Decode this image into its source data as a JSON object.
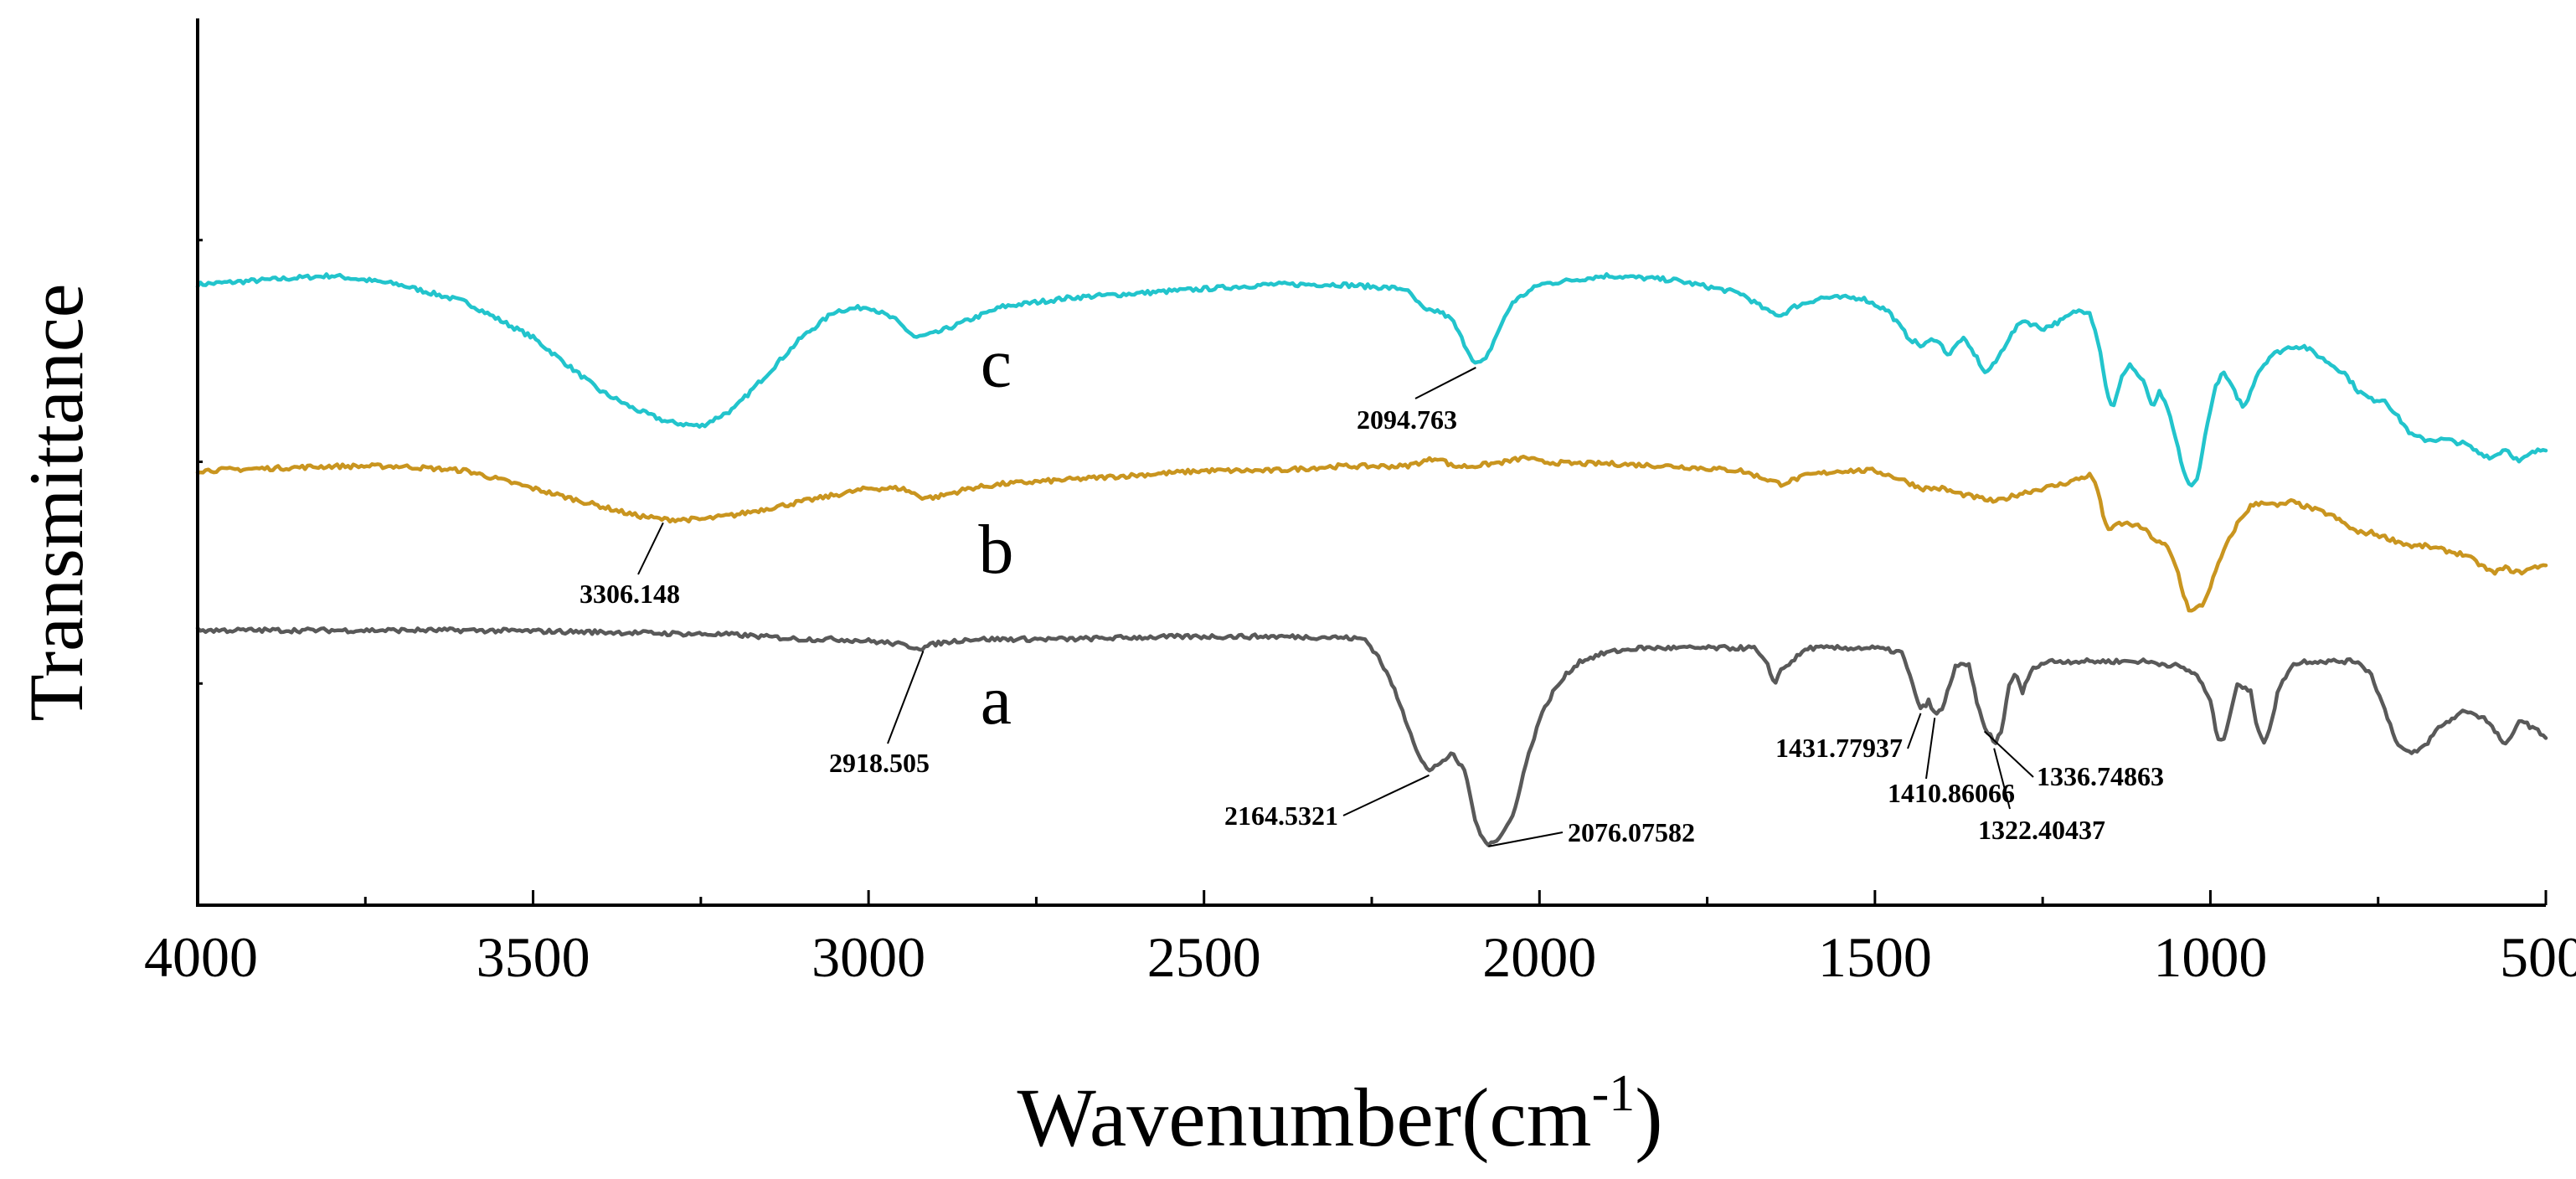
{
  "chart_data": {
    "type": "line",
    "title": "",
    "xlabel": "Wavenumber(cm",
    "xlabel_superscript": "-1",
    "xlabel_close": ")",
    "ylabel": "Transmittance",
    "xlim": [
      4000,
      500
    ],
    "ylim": [
      0,
      100
    ],
    "x_ticks": [
      4000,
      3500,
      3000,
      2500,
      2000,
      1500,
      1000,
      500
    ],
    "x_tick_labels": [
      "4000",
      "3500",
      "3000",
      "2500",
      "2000",
      "1500",
      "1000",
      "500"
    ],
    "grid": false,
    "legend": "none",
    "series": [
      {
        "name": "c",
        "color": "#22c4cc",
        "points": [
          [
            4000,
            70
          ],
          [
            3800,
            71
          ],
          [
            3700,
            70
          ],
          [
            3600,
            68
          ],
          [
            3500,
            64
          ],
          [
            3400,
            58
          ],
          [
            3350,
            56
          ],
          [
            3300,
            54.5
          ],
          [
            3250,
            54
          ],
          [
            3200,
            56
          ],
          [
            3150,
            60
          ],
          [
            3100,
            64
          ],
          [
            3050,
            67
          ],
          [
            3000,
            67.5
          ],
          [
            2960,
            66
          ],
          [
            2930,
            64
          ],
          [
            2900,
            64.5
          ],
          [
            2850,
            66
          ],
          [
            2800,
            67.5
          ],
          [
            2700,
            68.5
          ],
          [
            2600,
            69
          ],
          [
            2500,
            69.5
          ],
          [
            2400,
            70
          ],
          [
            2300,
            70
          ],
          [
            2200,
            69.5
          ],
          [
            2170,
            67
          ],
          [
            2150,
            67
          ],
          [
            2130,
            66
          ],
          [
            2110,
            63
          ],
          [
            2095,
            61
          ],
          [
            2080,
            61.5
          ],
          [
            2060,
            65
          ],
          [
            2040,
            68
          ],
          [
            2000,
            70
          ],
          [
            1900,
            71
          ],
          [
            1800,
            70.5
          ],
          [
            1700,
            69
          ],
          [
            1660,
            67
          ],
          [
            1640,
            66.5
          ],
          [
            1620,
            67.5
          ],
          [
            1580,
            68.5
          ],
          [
            1520,
            68.5
          ],
          [
            1480,
            67
          ],
          [
            1450,
            64
          ],
          [
            1430,
            63
          ],
          [
            1410,
            64
          ],
          [
            1390,
            62
          ],
          [
            1370,
            64
          ],
          [
            1350,
            62
          ],
          [
            1336,
            60
          ],
          [
            1322,
            61
          ],
          [
            1300,
            64
          ],
          [
            1280,
            66
          ],
          [
            1250,
            65
          ],
          [
            1220,
            66
          ],
          [
            1200,
            67
          ],
          [
            1180,
            67
          ],
          [
            1165,
            63
          ],
          [
            1155,
            58
          ],
          [
            1145,
            56
          ],
          [
            1130,
            60
          ],
          [
            1120,
            61
          ],
          [
            1100,
            59
          ],
          [
            1085,
            56
          ],
          [
            1075,
            58
          ],
          [
            1060,
            55
          ],
          [
            1050,
            52
          ],
          [
            1040,
            49
          ],
          [
            1030,
            47
          ],
          [
            1020,
            48
          ],
          [
            1010,
            52
          ],
          [
            1000,
            56
          ],
          [
            990,
            59
          ],
          [
            980,
            60
          ],
          [
            965,
            58
          ],
          [
            950,
            56
          ],
          [
            930,
            60
          ],
          [
            910,
            62
          ],
          [
            880,
            63
          ],
          [
            860,
            63
          ],
          [
            840,
            62
          ],
          [
            820,
            61
          ],
          [
            800,
            60
          ],
          [
            780,
            58
          ],
          [
            760,
            57
          ],
          [
            740,
            57
          ],
          [
            720,
            55
          ],
          [
            700,
            53
          ],
          [
            680,
            52.5
          ],
          [
            650,
            52.5
          ],
          [
            620,
            52
          ],
          [
            600,
            51
          ],
          [
            580,
            50.5
          ],
          [
            560,
            51.5
          ],
          [
            540,
            50
          ],
          [
            520,
            51
          ],
          [
            500,
            51.5
          ]
        ]
      },
      {
        "name": "b",
        "color": "#c9951f",
        "points": [
          [
            4000,
            49
          ],
          [
            3800,
            49.5
          ],
          [
            3700,
            49.5
          ],
          [
            3600,
            49
          ],
          [
            3500,
            47
          ],
          [
            3400,
            45
          ],
          [
            3350,
            44
          ],
          [
            3306,
            43.5
          ],
          [
            3250,
            43.5
          ],
          [
            3200,
            44
          ],
          [
            3100,
            45.5
          ],
          [
            3000,
            47
          ],
          [
            2950,
            47
          ],
          [
            2920,
            46
          ],
          [
            2900,
            46
          ],
          [
            2850,
            47
          ],
          [
            2800,
            47.5
          ],
          [
            2700,
            48
          ],
          [
            2600,
            48.5
          ],
          [
            2500,
            49
          ],
          [
            2400,
            49
          ],
          [
            2300,
            49.5
          ],
          [
            2200,
            49.5
          ],
          [
            2150,
            50.5
          ],
          [
            2130,
            49.5
          ],
          [
            2100,
            49.5
          ],
          [
            2050,
            50
          ],
          [
            2020,
            50.5
          ],
          [
            2000,
            50
          ],
          [
            1950,
            49.8
          ],
          [
            1900,
            49.8
          ],
          [
            1800,
            49.5
          ],
          [
            1700,
            49
          ],
          [
            1660,
            48
          ],
          [
            1640,
            47.5
          ],
          [
            1600,
            48.5
          ],
          [
            1550,
            49
          ],
          [
            1500,
            49
          ],
          [
            1460,
            48
          ],
          [
            1430,
            47
          ],
          [
            1400,
            47
          ],
          [
            1380,
            46.5
          ],
          [
            1350,
            46
          ],
          [
            1320,
            45.5
          ],
          [
            1300,
            46
          ],
          [
            1280,
            46.5
          ],
          [
            1250,
            47
          ],
          [
            1220,
            47.5
          ],
          [
            1200,
            48
          ],
          [
            1180,
            48.5
          ],
          [
            1170,
            47.5
          ],
          [
            1160,
            44
          ],
          [
            1150,
            42
          ],
          [
            1140,
            43
          ],
          [
            1120,
            43
          ],
          [
            1100,
            42.5
          ],
          [
            1080,
            41
          ],
          [
            1065,
            40.5
          ],
          [
            1050,
            38
          ],
          [
            1040,
            35
          ],
          [
            1030,
            33
          ],
          [
            1020,
            33.5
          ],
          [
            1010,
            34
          ],
          [
            1000,
            36
          ],
          [
            980,
            40
          ],
          [
            960,
            43
          ],
          [
            940,
            45
          ],
          [
            920,
            45.5
          ],
          [
            900,
            45
          ],
          [
            880,
            45.5
          ],
          [
            860,
            45
          ],
          [
            840,
            44.5
          ],
          [
            820,
            44
          ],
          [
            800,
            43
          ],
          [
            780,
            42
          ],
          [
            760,
            42
          ],
          [
            740,
            41.5
          ],
          [
            720,
            41
          ],
          [
            700,
            40.5
          ],
          [
            680,
            40.5
          ],
          [
            650,
            40
          ],
          [
            620,
            39.5
          ],
          [
            600,
            38.5
          ],
          [
            580,
            37.5
          ],
          [
            560,
            38
          ],
          [
            540,
            37.5
          ],
          [
            520,
            38
          ],
          [
            500,
            38.5
          ]
        ]
      },
      {
        "name": "a",
        "color": "#595959",
        "points": [
          [
            4000,
            31
          ],
          [
            3800,
            31
          ],
          [
            3600,
            31
          ],
          [
            3400,
            30.8
          ],
          [
            3200,
            30.5
          ],
          [
            3100,
            30
          ],
          [
            3050,
            30
          ],
          [
            3000,
            29.8
          ],
          [
            2960,
            29.5
          ],
          [
            2940,
            29.2
          ],
          [
            2920,
            29
          ],
          [
            2900,
            29.5
          ],
          [
            2850,
            30
          ],
          [
            2800,
            30
          ],
          [
            2700,
            30
          ],
          [
            2600,
            30.2
          ],
          [
            2500,
            30.3
          ],
          [
            2400,
            30.3
          ],
          [
            2300,
            30.2
          ],
          [
            2260,
            30
          ],
          [
            2240,
            28
          ],
          [
            2220,
            25
          ],
          [
            2200,
            21
          ],
          [
            2180,
            17
          ],
          [
            2165,
            15
          ],
          [
            2150,
            16
          ],
          [
            2130,
            17
          ],
          [
            2110,
            15
          ],
          [
            2100,
            11
          ],
          [
            2090,
            8
          ],
          [
            2076,
            7
          ],
          [
            2060,
            7.5
          ],
          [
            2040,
            10
          ],
          [
            2020,
            16
          ],
          [
            2000,
            21
          ],
          [
            1980,
            24
          ],
          [
            1960,
            26
          ],
          [
            1940,
            27.5
          ],
          [
            1900,
            28.5
          ],
          [
            1850,
            29
          ],
          [
            1800,
            29
          ],
          [
            1700,
            29
          ],
          [
            1680,
            29
          ],
          [
            1660,
            27
          ],
          [
            1650,
            25
          ],
          [
            1640,
            26.5
          ],
          [
            1600,
            29
          ],
          [
            1550,
            29
          ],
          [
            1500,
            29
          ],
          [
            1460,
            28.5
          ],
          [
            1440,
            24
          ],
          [
            1432,
            22
          ],
          [
            1420,
            23
          ],
          [
            1411,
            21.5
          ],
          [
            1400,
            22
          ],
          [
            1380,
            27
          ],
          [
            1360,
            27
          ],
          [
            1345,
            22
          ],
          [
            1337,
            20
          ],
          [
            1330,
            19.5
          ],
          [
            1322,
            18
          ],
          [
            1310,
            20
          ],
          [
            1300,
            25
          ],
          [
            1290,
            26
          ],
          [
            1280,
            24
          ],
          [
            1270,
            26
          ],
          [
            1260,
            27
          ],
          [
            1240,
            27.5
          ],
          [
            1220,
            27.5
          ],
          [
            1200,
            27.5
          ],
          [
            1150,
            27.5
          ],
          [
            1100,
            27.5
          ],
          [
            1050,
            27
          ],
          [
            1020,
            26
          ],
          [
            1000,
            23
          ],
          [
            990,
            19
          ],
          [
            980,
            18.5
          ],
          [
            970,
            22
          ],
          [
            960,
            25
          ],
          [
            940,
            24
          ],
          [
            930,
            20
          ],
          [
            920,
            18.5
          ],
          [
            910,
            20
          ],
          [
            900,
            24
          ],
          [
            880,
            27
          ],
          [
            860,
            27.5
          ],
          [
            820,
            27.5
          ],
          [
            780,
            27.5
          ],
          [
            760,
            26
          ],
          [
            740,
            22
          ],
          [
            720,
            18
          ],
          [
            700,
            17
          ],
          [
            680,
            18
          ],
          [
            660,
            20
          ],
          [
            620,
            22
          ],
          [
            590,
            21
          ],
          [
            570,
            19
          ],
          [
            560,
            18
          ],
          [
            550,
            19
          ],
          [
            540,
            21
          ],
          [
            520,
            20
          ],
          [
            500,
            19
          ]
        ]
      }
    ],
    "curve_labels": [
      {
        "text": "c",
        "x": 2810,
        "y": 58.5
      },
      {
        "text": "b",
        "x": 2810,
        "y": 37.5
      },
      {
        "text": "a",
        "x": 2810,
        "y": 20.5
      }
    ],
    "annotations": [
      {
        "text": "2094.763",
        "series": "c",
        "peak_x": 2094.763
      },
      {
        "text": "3306.148",
        "series": "b",
        "peak_x": 3306.148
      },
      {
        "text": "2918.505",
        "series": "a",
        "peak_x": 2918.505
      },
      {
        "text": "2164.5321",
        "series": "a",
        "peak_x": 2164.5321
      },
      {
        "text": "2076.07582",
        "series": "a",
        "peak_x": 2076.07582
      },
      {
        "text": "1431.77937",
        "series": "a",
        "peak_x": 1431.77937
      },
      {
        "text": "1410.86066",
        "series": "a",
        "peak_x": 1410.86066
      },
      {
        "text": "1336.74863",
        "series": "a",
        "peak_x": 1336.74863
      },
      {
        "text": "1322.40437",
        "series": "a",
        "peak_x": 1322.40437
      }
    ]
  }
}
